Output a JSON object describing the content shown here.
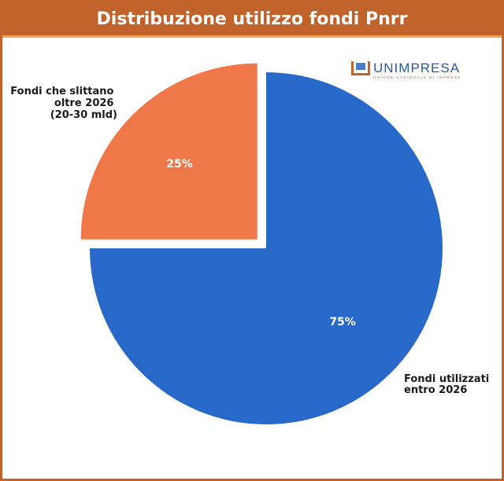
{
  "chart_data": {
    "type": "pie",
    "title": "Distribuzione utilizzo fondi Pnrr",
    "slices": [
      {
        "label": "Fondi che slittano oltre 2026 (20-30 mld)",
        "label_lines": [
          "Fondi che slittano",
          "oltre 2026",
          "(20-30 mld)"
        ],
        "value": 25,
        "value_label": "25%",
        "color": "#ef7748",
        "exploded": true
      },
      {
        "label": "Fondi utilizzati entro 2026",
        "label_lines": [
          "Fondi utilizzati",
          "entro 2026"
        ],
        "value": 75,
        "value_label": "75%",
        "color": "#2868c8",
        "exploded": false
      }
    ]
  },
  "logo": {
    "name": "UNIMPRESA",
    "subtitle": "UNIONE NAZIONALE DI IMPRESE"
  },
  "colors": {
    "frame": "#c0622a",
    "title_underline": "#f2a74a"
  }
}
